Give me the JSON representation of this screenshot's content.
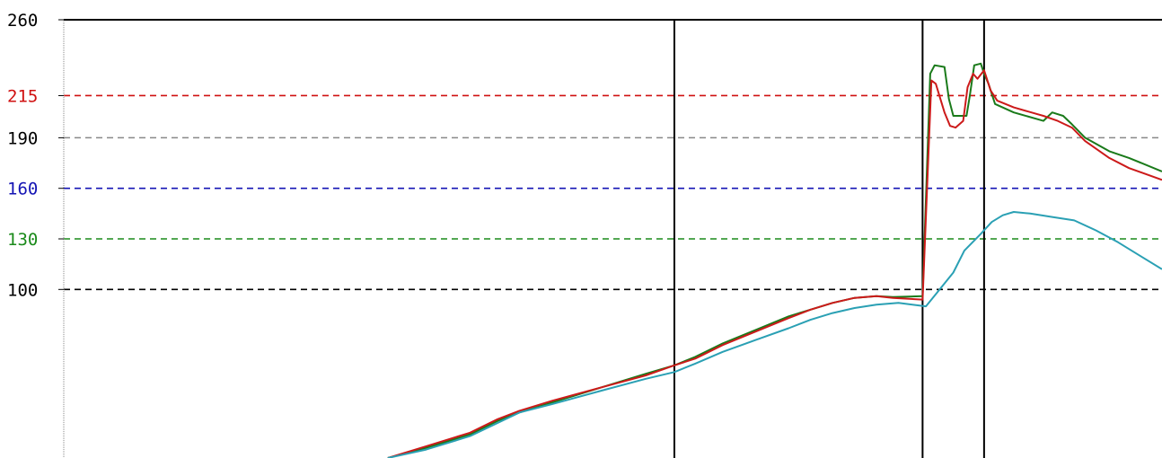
{
  "chart_data": {
    "type": "line",
    "title": "",
    "xlabel": "",
    "ylabel": "",
    "ylim": [
      0,
      260
    ],
    "xlim": [
      0,
      100
    ],
    "grid": false,
    "legend": "none",
    "y_ticks": [
      {
        "value": 260,
        "label": "260",
        "color": "#000000"
      },
      {
        "value": 215,
        "label": "215",
        "color": "#d01010"
      },
      {
        "value": 190,
        "label": "190",
        "color": "#000000"
      },
      {
        "value": 160,
        "label": "160",
        "color": "#1414b4"
      },
      {
        "value": 130,
        "label": "130",
        "color": "#1a8a1a"
      },
      {
        "value": 100,
        "label": "100",
        "color": "#000000"
      }
    ],
    "reference_lines": [
      {
        "value": 215,
        "color": "#d01010"
      },
      {
        "value": 190,
        "color": "#888888"
      },
      {
        "value": 160,
        "color": "#1414b4"
      },
      {
        "value": 130,
        "color": "#1a8a1a"
      },
      {
        "value": 100,
        "color": "#000000"
      }
    ],
    "event_markers_x": [
      55.6,
      78.2,
      83.8
    ],
    "series": [
      {
        "color": "#1a7a1a",
        "x": [
          29.5,
          33,
          37,
          39.5,
          41.5,
          44.5,
          49,
          53,
          55.6,
          57.5,
          60,
          63,
          66,
          68,
          70,
          72,
          74,
          75.5,
          78.2,
          78.9,
          79.3,
          80.2,
          80.6,
          81,
          82.2,
          82.5,
          82.9,
          83.5,
          83.8,
          84.2,
          84.8,
          86.5,
          89.2,
          90,
          91,
          91.8,
          93,
          95.2,
          97,
          100
        ],
        "values": [
          0,
          6,
          14,
          22,
          27,
          33,
          42,
          50,
          55,
          60,
          68,
          76,
          84,
          88,
          92,
          95,
          96,
          95.5,
          96,
          228,
          233,
          232,
          213,
          203,
          203,
          215,
          233,
          234,
          228,
          222,
          210,
          205,
          200,
          205,
          203,
          198,
          190,
          182,
          178,
          170
        ]
      },
      {
        "color": "#cc1a1a",
        "x": [
          29.5,
          33,
          37,
          39.5,
          41.5,
          44.5,
          49,
          53,
          55.6,
          57.5,
          60,
          63,
          66,
          68,
          70,
          72,
          74,
          75.5,
          78.2,
          79,
          79.4,
          80.2,
          80.7,
          81.2,
          81.9,
          82.3,
          82.8,
          83.2,
          83.8,
          84.4,
          85,
          86.5,
          89.2,
          90.5,
          91.8,
          93,
          95.2,
          97,
          100
        ],
        "values": [
          0,
          7,
          15,
          23,
          28,
          34,
          42,
          49,
          55,
          59,
          67,
          75,
          83,
          88,
          92,
          95,
          96,
          95,
          94,
          224,
          222,
          205,
          197,
          196,
          200,
          220,
          228,
          225,
          230,
          218,
          212,
          208,
          203,
          200,
          196,
          188,
          178,
          172,
          165
        ]
      },
      {
        "color": "#2aa0b4",
        "x": [
          29.5,
          33,
          37,
          41.5,
          44.5,
          49,
          53,
          55.6,
          57.5,
          60,
          63,
          66,
          68,
          70,
          72,
          74,
          76,
          78.5,
          79.5,
          81,
          82,
          83.5,
          84.5,
          85.5,
          86.5,
          88,
          90,
          92,
          94,
          96,
          98,
          100
        ],
        "values": [
          0,
          5,
          13,
          27,
          32,
          40,
          47,
          51,
          56,
          63,
          70,
          77,
          82,
          86,
          89,
          91,
          92,
          90,
          98,
          110,
          123,
          133,
          140,
          144,
          146,
          145,
          143,
          141,
          135,
          128,
          120,
          112
        ]
      }
    ]
  }
}
